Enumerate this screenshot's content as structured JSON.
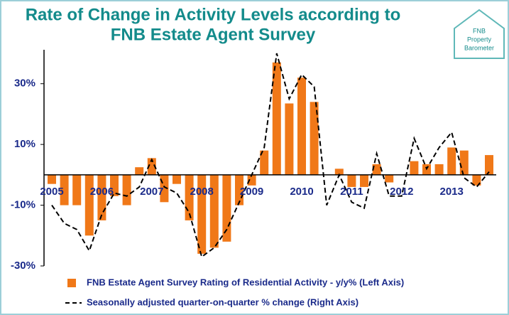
{
  "chart_data": {
    "type": "bar",
    "title_lines": [
      "Rate of Change in Activity Levels according to",
      "FNB Estate Agent Survey"
    ],
    "logo_lines": [
      "FNB",
      "Property",
      "Barometer"
    ],
    "categories": [
      "2005",
      null,
      null,
      null,
      "2006",
      null,
      null,
      null,
      "2007",
      null,
      null,
      null,
      "2008",
      null,
      null,
      null,
      "2009",
      null,
      null,
      null,
      "2010",
      null,
      null,
      null,
      "2011",
      null,
      null,
      null,
      "2012",
      null,
      null,
      null,
      "2013",
      null,
      null,
      null
    ],
    "series": [
      {
        "name": "FNB Estate Agent Survey Rating of Residential Activity - y/y% (Left Axis)",
        "color": "#f07818",
        "values": [
          -3,
          -10,
          -10,
          -20,
          -15,
          -7,
          -10,
          2.5,
          5.5,
          -9,
          -3,
          -15,
          -26,
          -24,
          -22,
          -10,
          -3.5,
          8,
          37,
          23.5,
          32,
          24,
          0,
          2,
          -4,
          -4,
          3.5,
          -2.5,
          0,
          4.5,
          3.5,
          3.5,
          9,
          8,
          -3.5,
          6.5
        ]
      },
      {
        "name": "Seasonally adjusted  quarter-on-quarter % change (Right Axis)",
        "color": "#000000",
        "type": "line",
        "values": [
          -10,
          -16,
          -18,
          -25,
          -13,
          -6,
          -7,
          -4,
          5,
          -4,
          -6,
          -12.5,
          -27,
          -24,
          -18,
          -9,
          0,
          9,
          40,
          25,
          33,
          29,
          -10,
          0,
          -9,
          -11,
          7,
          -7,
          -7,
          12,
          2,
          9,
          14,
          -1,
          -4,
          1
        ]
      }
    ],
    "ylim": [
      -30,
      40
    ],
    "yticks": [
      {
        "value": 30,
        "label": "30%"
      },
      {
        "value": 10,
        "label": "10%"
      },
      {
        "value": -10,
        "label": "-10%"
      },
      {
        "value": -30,
        "label": "-30%"
      }
    ]
  }
}
